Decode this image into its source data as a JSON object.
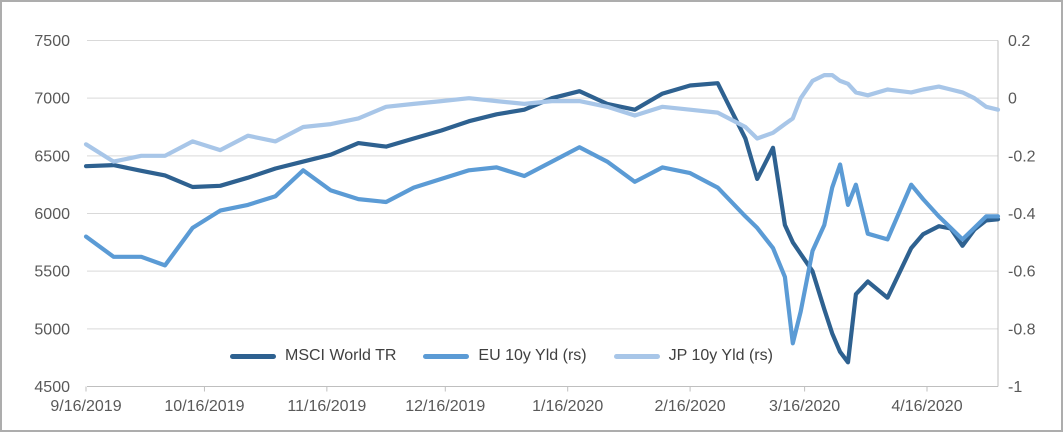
{
  "chart_data": {
    "type": "line",
    "title": "",
    "grid": true,
    "legend_position": "bottom-inside",
    "colors": {
      "gridline": "#D9D9D9",
      "axis_line": "#BFBFBF",
      "tick_label": "#595959",
      "legend_text": "#404040",
      "background": "#FFFFFF",
      "frame_border": "#ADADAD"
    },
    "left_axis": {
      "min": 4500,
      "max": 7500,
      "tick_labels": [
        "7500",
        "7000",
        "6500",
        "6000",
        "5500",
        "5000",
        "4500"
      ]
    },
    "right_axis": {
      "min": -1,
      "max": 0.2,
      "tick_labels": [
        "0.2",
        "0",
        "-0.2",
        "-0.4",
        "-0.6",
        "-0.8",
        "-1"
      ]
    },
    "x_axis": {
      "tick_labels": [
        "9/16/2019",
        "10/16/2019",
        "11/16/2019",
        "12/16/2019",
        "1/16/2020",
        "2/16/2020",
        "3/16/2020",
        "4/16/2020"
      ],
      "start_date": "2019-09-16",
      "end_date": "2020-05-04"
    },
    "dates": [
      "2019-09-16",
      "2019-09-23",
      "2019-09-30",
      "2019-10-06",
      "2019-10-13",
      "2019-10-20",
      "2019-10-27",
      "2019-11-03",
      "2019-11-10",
      "2019-11-17",
      "2019-11-24",
      "2019-12-01",
      "2019-12-08",
      "2019-12-15",
      "2019-12-22",
      "2019-12-29",
      "2020-01-05",
      "2020-01-12",
      "2020-01-19",
      "2020-01-26",
      "2020-02-02",
      "2020-02-09",
      "2020-02-16",
      "2020-02-23",
      "2020-03-01",
      "2020-03-04",
      "2020-03-08",
      "2020-03-11",
      "2020-03-13",
      "2020-03-15",
      "2020-03-18",
      "2020-03-21",
      "2020-03-23",
      "2020-03-25",
      "2020-03-27",
      "2020-03-29",
      "2020-04-01",
      "2020-04-06",
      "2020-04-12",
      "2020-04-15",
      "2020-04-19",
      "2020-04-22",
      "2020-04-25",
      "2020-04-28",
      "2020-05-01",
      "2020-05-04"
    ],
    "series": [
      {
        "name": "MSCI World TR",
        "axis": "left",
        "color": "#2E6190",
        "values": [
          6410,
          6420,
          6370,
          6330,
          6230,
          6240,
          6310,
          6390,
          6450,
          6510,
          6610,
          6580,
          6650,
          6720,
          6800,
          6860,
          6900,
          7000,
          7060,
          6950,
          6900,
          7040,
          7110,
          7130,
          6650,
          6300,
          6570,
          5900,
          5750,
          5650,
          5500,
          5170,
          4960,
          4800,
          4710,
          5300,
          5410,
          5270,
          5700,
          5820,
          5890,
          5870,
          5720,
          5860,
          5940,
          5950
        ]
      },
      {
        "name": "EU 10y Yld (rs)",
        "axis": "right",
        "color": "#5B9BD5",
        "values": [
          -0.48,
          -0.55,
          -0.55,
          -0.58,
          -0.45,
          -0.39,
          -0.37,
          -0.34,
          -0.25,
          -0.32,
          -0.35,
          -0.36,
          -0.31,
          -0.28,
          -0.25,
          -0.24,
          -0.27,
          -0.22,
          -0.17,
          -0.22,
          -0.29,
          -0.24,
          -0.26,
          -0.31,
          -0.41,
          -0.45,
          -0.52,
          -0.62,
          -0.85,
          -0.74,
          -0.53,
          -0.44,
          -0.31,
          -0.23,
          -0.37,
          -0.3,
          -0.47,
          -0.49,
          -0.3,
          -0.35,
          -0.41,
          -0.45,
          -0.49,
          -0.45,
          -0.41,
          -0.41
        ]
      },
      {
        "name": "JP 10y Yld (rs)",
        "axis": "right",
        "color": "#A8C6E8",
        "values": [
          -0.16,
          -0.22,
          -0.2,
          -0.2,
          -0.15,
          -0.18,
          -0.13,
          -0.15,
          -0.1,
          -0.09,
          -0.07,
          -0.03,
          -0.02,
          -0.01,
          0.0,
          -0.01,
          -0.02,
          -0.01,
          -0.01,
          -0.03,
          -0.06,
          -0.03,
          -0.04,
          -0.05,
          -0.1,
          -0.14,
          -0.12,
          -0.09,
          -0.07,
          0.0,
          0.06,
          0.08,
          0.08,
          0.06,
          0.05,
          0.02,
          0.01,
          0.03,
          0.02,
          0.03,
          0.04,
          0.03,
          0.02,
          0.0,
          -0.03,
          -0.04
        ]
      }
    ]
  }
}
